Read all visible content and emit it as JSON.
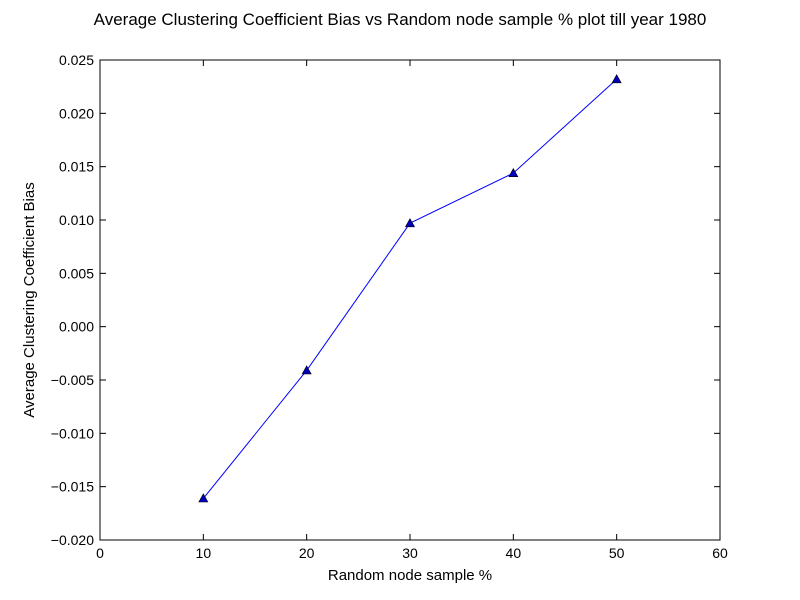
{
  "chart_data": {
    "type": "line",
    "title": "Average Clustering Coefficient Bias vs Random node sample % plot till year 1980",
    "xlabel": "Random node sample %",
    "ylabel": "Average Clustering Coefficient Bias",
    "xlim": [
      0,
      60
    ],
    "ylim": [
      -0.02,
      0.025
    ],
    "xticks": [
      0,
      10,
      20,
      30,
      40,
      50,
      60
    ],
    "yticks": [
      -0.02,
      -0.015,
      -0.01,
      -0.005,
      0.0,
      0.005,
      0.01,
      0.015,
      0.02,
      0.025
    ],
    "xtick_labels": [
      "0",
      "10",
      "20",
      "30",
      "40",
      "50",
      "60"
    ],
    "ytick_labels": [
      "−0.020",
      "−0.015",
      "−0.010",
      "−0.005",
      "0.000",
      "0.005",
      "0.010",
      "0.015",
      "0.020",
      "0.025"
    ],
    "grid": false,
    "series": [
      {
        "x": [
          10,
          20,
          30,
          40,
          50
        ],
        "y": [
          -0.0161,
          -0.0041,
          0.0097,
          0.0144,
          0.0232
        ],
        "color": "#0000ff",
        "marker": "triangle-up",
        "marker_color": "#0000bb"
      }
    ]
  }
}
